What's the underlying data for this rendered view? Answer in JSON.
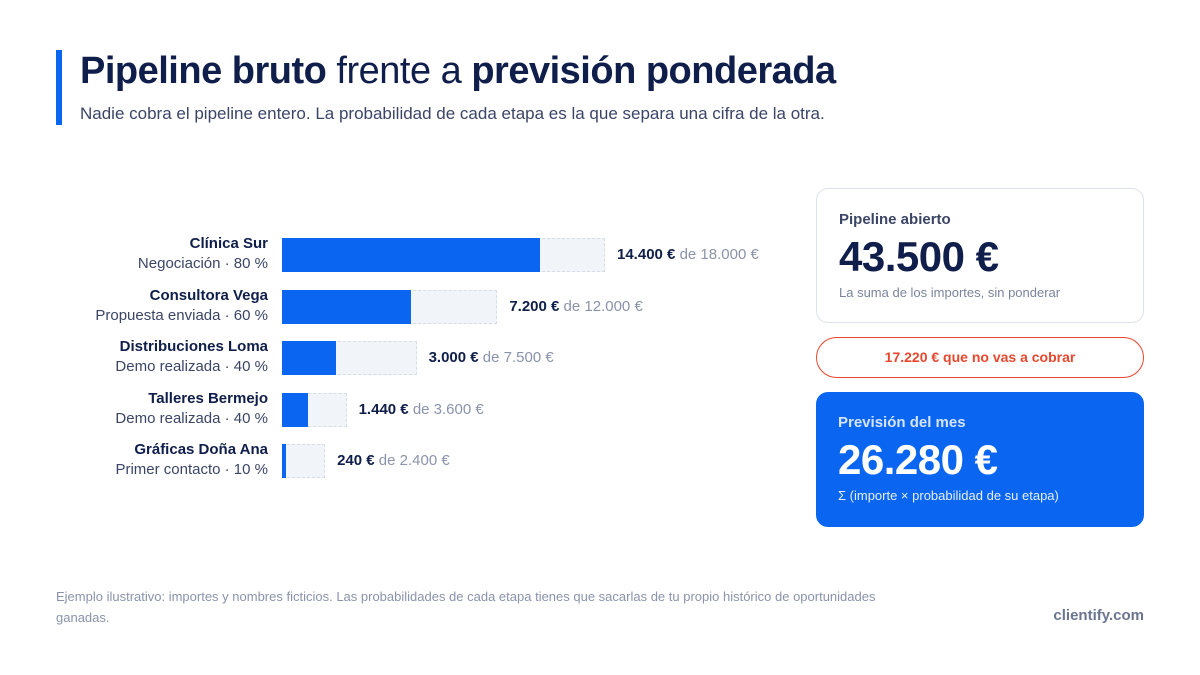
{
  "header": {
    "title_part1": "Pipeline bruto",
    "title_part2": " frente a ",
    "title_part3": "previsión ponderada",
    "subtitle": "Nadie cobra el pipeline entero. La probabilidad de cada etapa es la que separa una cifra de la otra."
  },
  "chart_data": {
    "type": "bar",
    "orientation": "horizontal",
    "value_unit": "€",
    "rows": [
      {
        "name": "Clínica Sur",
        "stage": "Negociación · 80 %",
        "probability": 0.8,
        "gross": 18000,
        "weighted": 14400,
        "weighted_label": "14.400 €",
        "gross_label": "de 18.000 €"
      },
      {
        "name": "Consultora Vega",
        "stage": "Propuesta enviada · 60 %",
        "probability": 0.6,
        "gross": 12000,
        "weighted": 7200,
        "weighted_label": "7.200 €",
        "gross_label": "de 12.000 €"
      },
      {
        "name": "Distribuciones Loma",
        "stage": "Demo realizada · 40 %",
        "probability": 0.4,
        "gross": 7500,
        "weighted": 3000,
        "weighted_label": "3.000 €",
        "gross_label": "de 7.500 €"
      },
      {
        "name": "Talleres Bermejo",
        "stage": "Demo realizada · 40 %",
        "probability": 0.4,
        "gross": 3600,
        "weighted": 1440,
        "weighted_label": "1.440 €",
        "gross_label": "de 3.600 €"
      },
      {
        "name": "Gráficas Doña Ana",
        "stage": "Primer contacto · 10 %",
        "probability": 0.1,
        "gross": 2400,
        "weighted": 240,
        "weighted_label": "240 €",
        "gross_label": "de 2.400 €"
      }
    ],
    "colors": {
      "weighted": "#0a66f0",
      "gross": "#f1f4f9"
    }
  },
  "summary": {
    "open": {
      "label": "Pipeline abierto",
      "value": "43.500 €",
      "note": "La suma de los importes, sin ponderar"
    },
    "gap": "17.220 € que no vas a cobrar",
    "forecast": {
      "label": "Previsión del mes",
      "value": "26.280 €",
      "note": "Σ (importe × probabilidad de su etapa)"
    }
  },
  "footer": {
    "note": "Ejemplo ilustrativo: importes y nombres ficticios. Las probabilidades de cada etapa tienes que sacarlas de tu propio histórico de oportunidades ganadas.",
    "brand": "clientify.com"
  },
  "colors": {
    "accent": "#0a66f0",
    "warning": "#e8472e",
    "text": "#0f1e4a"
  }
}
